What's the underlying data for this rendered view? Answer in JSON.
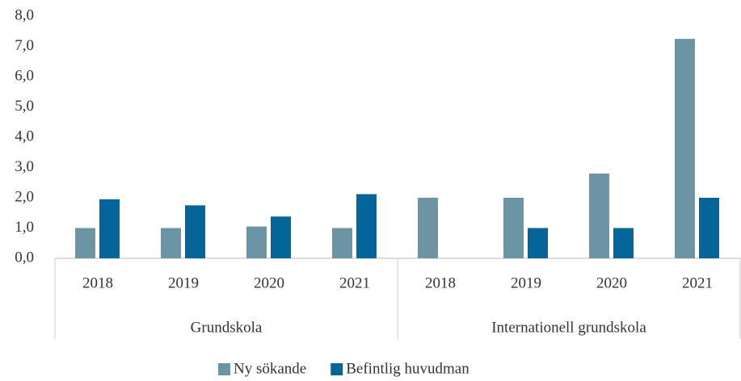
{
  "chart_data": {
    "type": "bar",
    "categories": [
      "2018",
      "2019",
      "2020",
      "2021",
      "2018",
      "2019",
      "2020",
      "2021"
    ],
    "category_groups": [
      "Grundskola",
      "Internationell grundskola"
    ],
    "series": [
      {
        "name": "Ny sökande",
        "color": "#6b95a4",
        "values": [
          1.0,
          1.0,
          1.05,
          1.0,
          2.0,
          2.0,
          2.8,
          7.25
        ]
      },
      {
        "name": "Befintlig huvudman",
        "color": "#03659a",
        "values": [
          1.95,
          1.75,
          1.38,
          2.12,
          0,
          1.0,
          1.0,
          2.0
        ]
      }
    ],
    "ylim": [
      0,
      8
    ],
    "yticks": [
      {
        "value": 0,
        "label": "0,0"
      },
      {
        "value": 1,
        "label": "1,0"
      },
      {
        "value": 2,
        "label": "2,0"
      },
      {
        "value": 3,
        "label": "3,0"
      },
      {
        "value": 4,
        "label": "4,0"
      },
      {
        "value": 5,
        "label": "5,0"
      },
      {
        "value": 6,
        "label": "6,0"
      },
      {
        "value": 7,
        "label": "7,0"
      },
      {
        "value": 8,
        "label": "8,0"
      }
    ],
    "grid": false,
    "legend": "bottom"
  }
}
